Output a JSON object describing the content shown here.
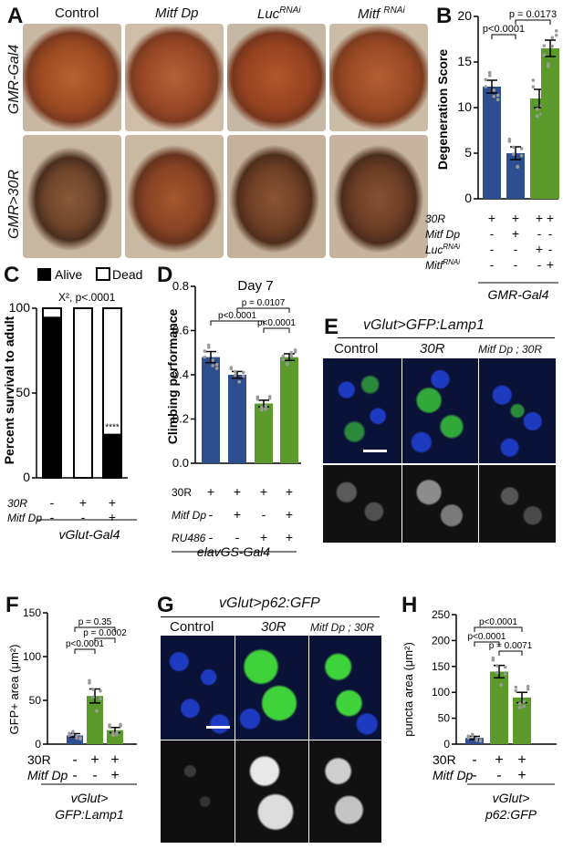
{
  "colors": {
    "blue": "#2e4f8f",
    "green": "#5c9a2c",
    "black": "#000000",
    "nuclei": "#1d2fa8",
    "gfp": "#3fd23a"
  },
  "panelA": {
    "letter": "A",
    "col_labels": [
      "Control",
      "Mitf Dp",
      "Luc",
      "Mitf "
    ],
    "col_sup": [
      "",
      "",
      "RNAi",
      "RNAi"
    ],
    "row_labels": [
      "GMR-Gal4",
      "GMR>30R"
    ]
  },
  "panelB": {
    "letter": "B",
    "ylabel": "Degeneration Score",
    "pvals": [
      "p<0.0001",
      "p = 0.0173"
    ],
    "rows": [
      "30R",
      "Mitf Dp",
      "Luc",
      "Mitf"
    ],
    "row_sup": [
      "",
      "",
      "RNAi",
      "RNAi"
    ],
    "footer": "GMR-Gal4"
  },
  "panelC": {
    "letter": "C",
    "legend": [
      "Alive",
      "Dead"
    ],
    "ylabel": "Percent survival to adult",
    "stat": "X², p<.0001",
    "stars": "****",
    "rows": [
      "30R",
      "Mitf Dp"
    ],
    "footer": "vGlut-Gal4"
  },
  "panelD": {
    "letter": "D",
    "title": "Day 7",
    "ylabel": "Climbing performance",
    "pvals": [
      "p<0.0001",
      "p = 0.0107",
      "p<0.0001"
    ],
    "rows": [
      "30R",
      "Mitf Dp",
      "RU486"
    ],
    "footer": "elavGS-Gal4"
  },
  "panelE": {
    "letter": "E",
    "title": "vGlut>GFP:Lamp1",
    "cols": [
      "Control",
      "30R",
      "Mitf Dp ; 30R"
    ]
  },
  "panelF": {
    "letter": "F",
    "ylabel": "GFP+ area (μm²)",
    "pvals": [
      "p = 0.35",
      "p = 0.0002",
      "p<0.0001"
    ],
    "rows": [
      "30R",
      "Mitf Dp"
    ],
    "footer1": "vGlut>",
    "footer2": "GFP:Lamp1"
  },
  "panelG": {
    "letter": "G",
    "title": "vGlut>p62:GFP",
    "cols": [
      "Control",
      "30R",
      "Mitf Dp ; 30R"
    ]
  },
  "panelH": {
    "letter": "H",
    "ylabel": "puncta area (μm²)",
    "pvals": [
      "p<0.0001",
      "p<0.0001",
      "p = 0.0071"
    ],
    "rows": [
      "30R",
      "Mitf Dp"
    ],
    "footer1": "vGlut>",
    "footer2": "p62:GFP"
  },
  "chart_data": [
    {
      "type": "bar",
      "panel": "B",
      "ylabel": "Degeneration Score",
      "ylim": [
        0,
        20
      ],
      "yticks": [
        0,
        5,
        10,
        15,
        20
      ],
      "conditions": [
        [
          "+",
          "-",
          "-",
          "-"
        ],
        [
          "+",
          "+",
          "-",
          "-"
        ],
        [
          "+",
          "-",
          "+",
          "-"
        ],
        [
          "+",
          "-",
          "-",
          "+"
        ]
      ],
      "values": [
        12.3,
        5.0,
        11.0,
        16.5
      ],
      "errors": [
        0.7,
        0.7,
        1.0,
        0.9
      ],
      "colors": [
        "#2e4f8f",
        "#2e4f8f",
        "#5c9a2c",
        "#5c9a2c"
      ]
    },
    {
      "type": "bar",
      "panel": "C",
      "ylabel": "Percent survival to adult",
      "ylim": [
        0,
        100
      ],
      "yticks": [
        0,
        50,
        100
      ],
      "conditions": [
        [
          "-",
          "-"
        ],
        [
          "+",
          "-"
        ],
        [
          "+",
          "+"
        ]
      ],
      "alive": [
        95,
        0,
        26
      ],
      "dead": [
        5,
        100,
        74
      ]
    },
    {
      "type": "bar",
      "panel": "D",
      "ylabel": "Climbing performance",
      "ylim": [
        0,
        0.8
      ],
      "yticks": [
        0,
        0.2,
        0.4,
        0.6,
        0.8
      ],
      "conditions": [
        [
          "+",
          "-",
          "-"
        ],
        [
          "+",
          "+",
          "-"
        ],
        [
          "+",
          "-",
          "+"
        ],
        [
          "+",
          "+",
          "+"
        ]
      ],
      "values": [
        0.48,
        0.4,
        0.27,
        0.48
      ],
      "errors": [
        0.025,
        0.015,
        0.015,
        0.015
      ],
      "colors": [
        "#2e4f8f",
        "#2e4f8f",
        "#5c9a2c",
        "#5c9a2c"
      ]
    },
    {
      "type": "bar",
      "panel": "F",
      "ylabel": "GFP+ area (μm²)",
      "ylim": [
        0,
        150
      ],
      "yticks": [
        0,
        50,
        100,
        150
      ],
      "conditions": [
        [
          "-",
          "-"
        ],
        [
          "+",
          "-"
        ],
        [
          "+",
          "+"
        ]
      ],
      "values": [
        10,
        55,
        16
      ],
      "errors": [
        2,
        8,
        3
      ],
      "colors": [
        "#2e4f8f",
        "#5c9a2c",
        "#5c9a2c"
      ]
    },
    {
      "type": "bar",
      "panel": "H",
      "ylabel": "puncta area (μm²)",
      "ylim": [
        0,
        250
      ],
      "yticks": [
        0,
        50,
        100,
        150,
        200,
        250
      ],
      "conditions": [
        [
          "-",
          "-"
        ],
        [
          "+",
          "-"
        ],
        [
          "+",
          "+"
        ]
      ],
      "values": [
        12,
        140,
        90
      ],
      "errors": [
        3,
        12,
        10
      ],
      "colors": [
        "#2e4f8f",
        "#5c9a2c",
        "#5c9a2c"
      ]
    }
  ]
}
